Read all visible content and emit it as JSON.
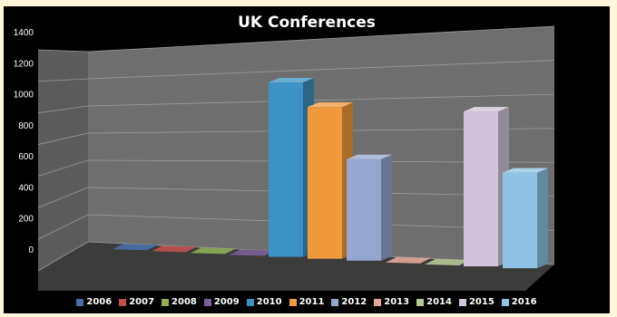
{
  "chart_data": {
    "type": "bar",
    "title": "UK Conferences",
    "categories": [
      "2006",
      "2007",
      "2008",
      "2009",
      "2010",
      "2011",
      "2012",
      "2013",
      "2014",
      "2015",
      "2016"
    ],
    "values": [
      5,
      5,
      5,
      5,
      1160,
      990,
      650,
      20,
      0,
      940,
      570
    ],
    "ylim": [
      0,
      1400
    ],
    "yticks": [
      0,
      200,
      400,
      600,
      800,
      1000,
      1200,
      1400
    ],
    "xlabel": "",
    "ylabel": "",
    "grid": true,
    "legend_position": "bottom",
    "three_d": true,
    "series_colors": [
      "#4a6fa8",
      "#c0504d",
      "#8fae55",
      "#7a5f9a",
      "#3d91c4",
      "#ef9a3c",
      "#95a7d0",
      "#e4a898",
      "#b5c897",
      "#d2c3da",
      "#8ec3e6"
    ]
  }
}
